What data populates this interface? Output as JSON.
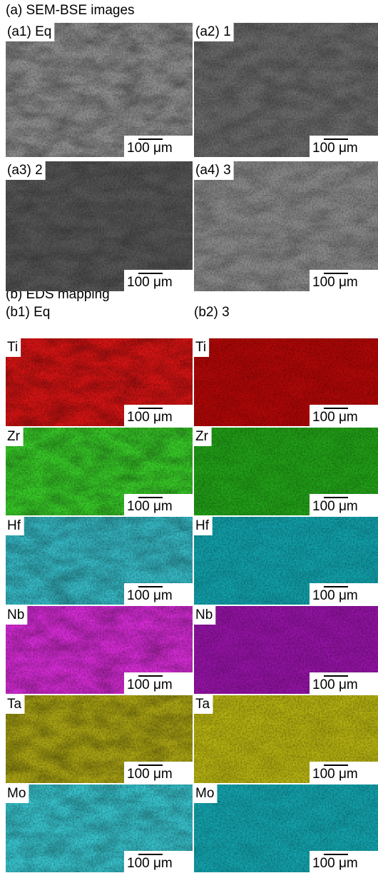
{
  "section_a": {
    "title": "(a) SEM-BSE images",
    "panels": [
      {
        "label": "(a1) Eq",
        "scale_bar": "100 μm"
      },
      {
        "label": "(a2) 1",
        "scale_bar": "100 μm"
      },
      {
        "label": "(a3) 2",
        "scale_bar": "100 μm"
      },
      {
        "label": "(a4) 3",
        "scale_bar": "100 μm"
      }
    ]
  },
  "section_b": {
    "title": "(b) EDS mapping",
    "columns": [
      {
        "label": "(b1) Eq",
        "maps": [
          {
            "element": "Ti",
            "scale_bar": "100 μm"
          },
          {
            "element": "Zr",
            "scale_bar": "100 μm"
          },
          {
            "element": "Hf",
            "scale_bar": "100 μm"
          },
          {
            "element": "Nb",
            "scale_bar": "100 μm"
          },
          {
            "element": "Ta",
            "scale_bar": "100 μm"
          },
          {
            "element": "Mo",
            "scale_bar": "100 μm"
          }
        ]
      },
      {
        "label": "(b2) 3",
        "maps": [
          {
            "element": "Ti",
            "scale_bar": "100 μm"
          },
          {
            "element": "Zr",
            "scale_bar": "100 μm"
          },
          {
            "element": "Hf",
            "scale_bar": "100 μm"
          },
          {
            "element": "Nb",
            "scale_bar": "100 μm"
          },
          {
            "element": "Ta",
            "scale_bar": "100 μm"
          },
          {
            "element": "Mo",
            "scale_bar": "100 μm"
          }
        ]
      }
    ]
  }
}
